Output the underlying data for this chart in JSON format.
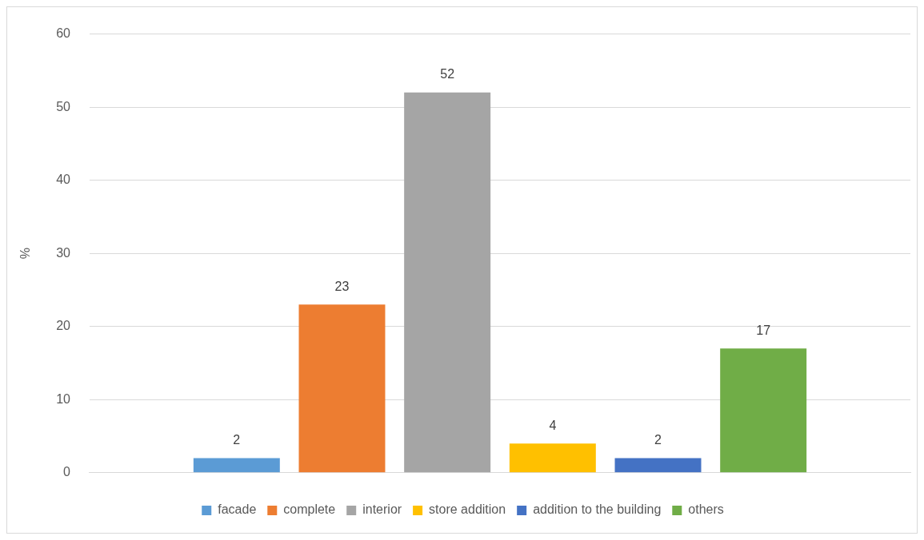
{
  "chart_data": {
    "type": "bar",
    "ylabel": "%",
    "categories": [
      null
    ],
    "series": [
      {
        "name": "facade",
        "color": "#5b9bd5",
        "values": [
          2
        ]
      },
      {
        "name": "complete",
        "color": "#ed7d31",
        "values": [
          23
        ]
      },
      {
        "name": "interior",
        "color": "#a5a5a5",
        "values": [
          52
        ]
      },
      {
        "name": "store addition",
        "color": "#ffc000",
        "values": [
          4
        ]
      },
      {
        "name": "addition to the building",
        "color": "#4472c4",
        "values": [
          2
        ]
      },
      {
        "name": "others",
        "color": "#70ad47",
        "values": [
          17
        ]
      }
    ],
    "ylim": [
      0,
      60
    ],
    "yticks": [
      0,
      10,
      20,
      30,
      40,
      50,
      60
    ],
    "grid": "y",
    "legend": "bottom",
    "data_labels": true
  }
}
